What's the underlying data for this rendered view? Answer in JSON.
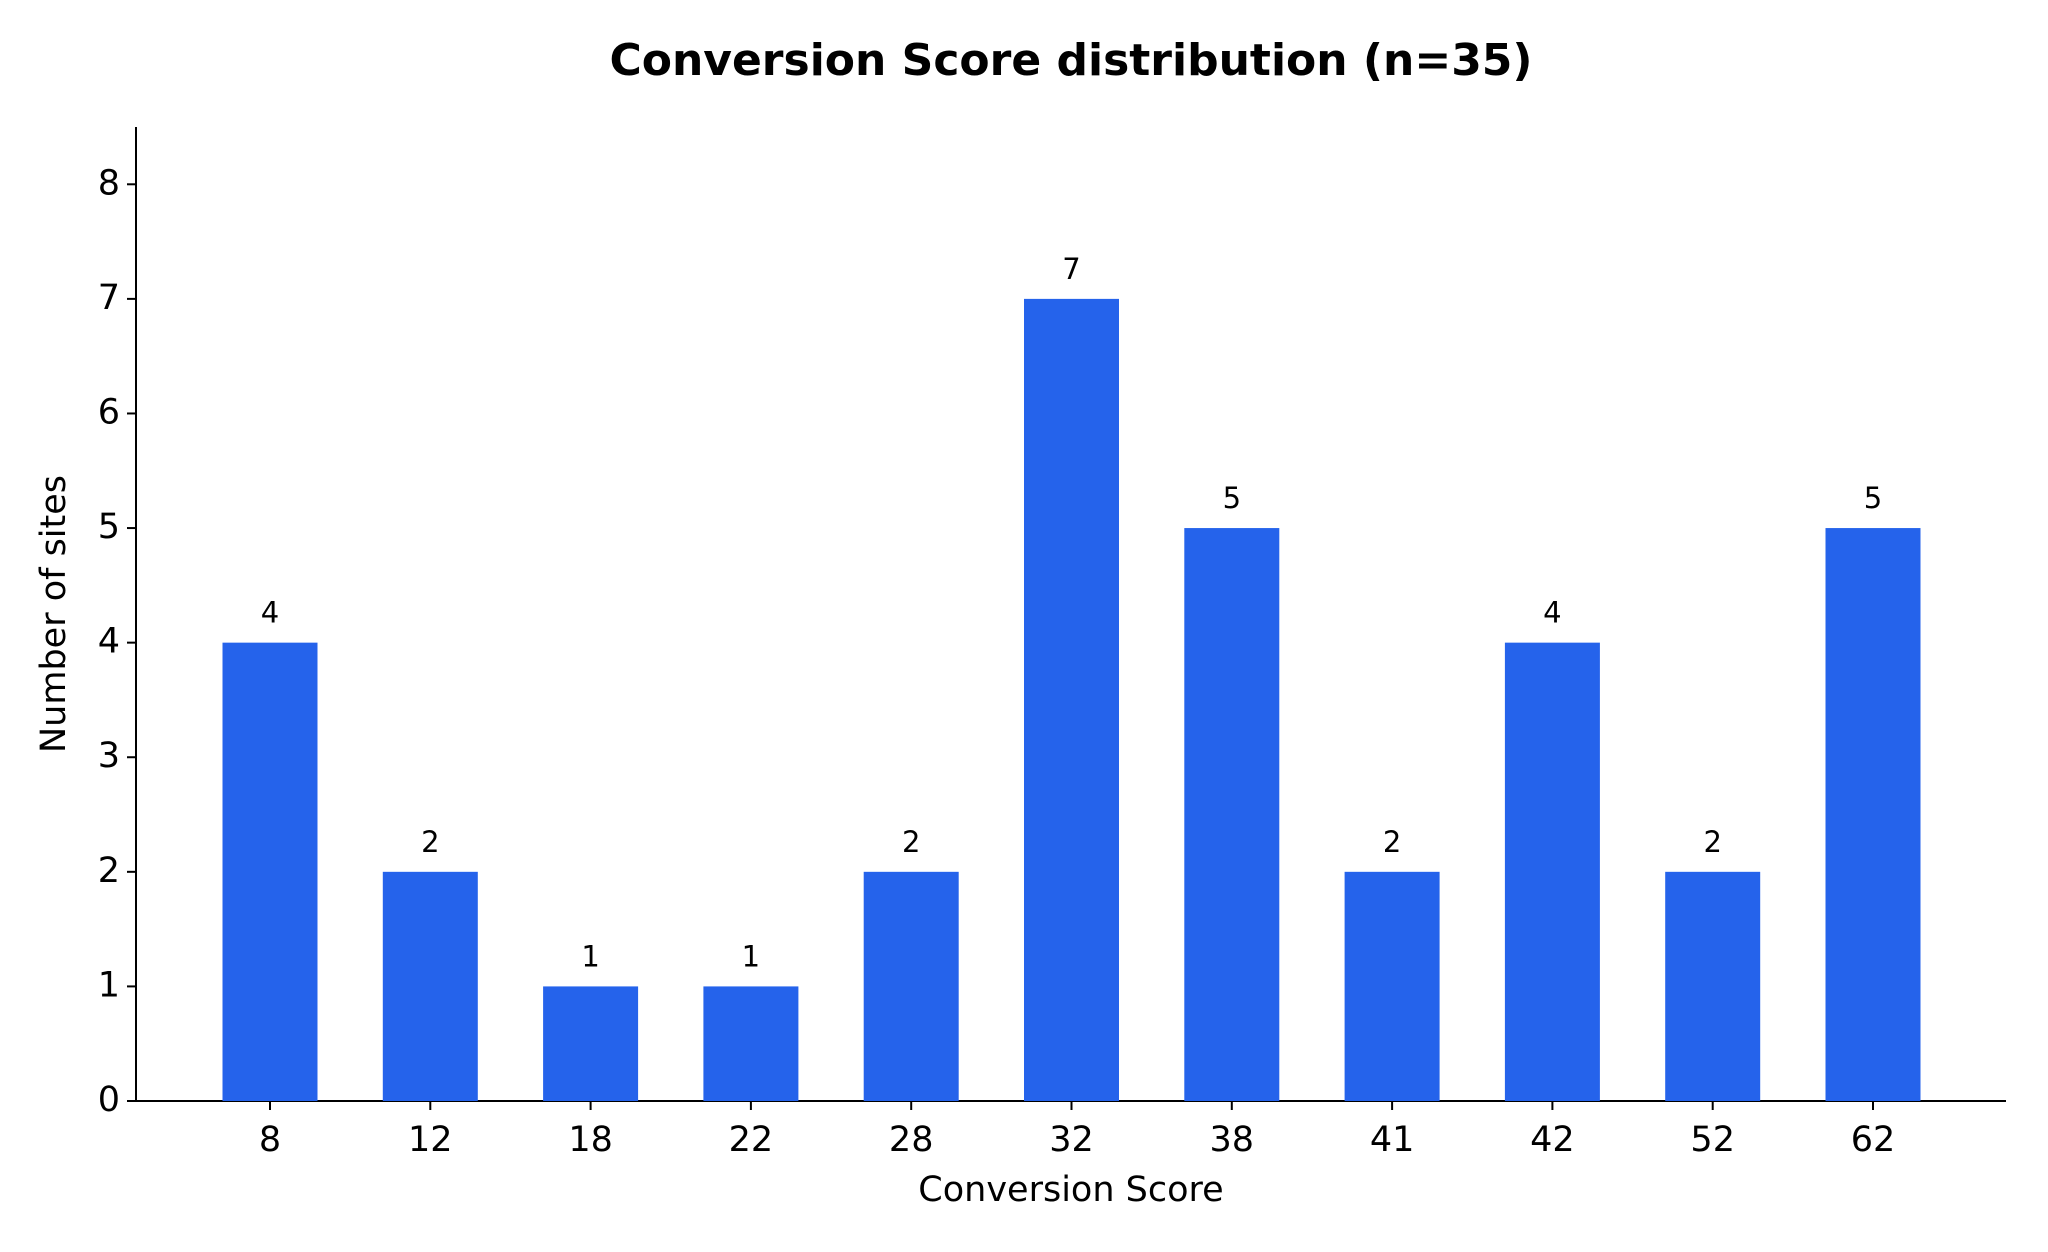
{
  "chart_data": {
    "type": "bar",
    "title": "Conversion Score distribution (n=35)",
    "x_label": "Conversion Score",
    "y_label": "Number of sites",
    "categories": [
      "8",
      "12",
      "18",
      "22",
      "28",
      "32",
      "38",
      "41",
      "42",
      "52",
      "62"
    ],
    "values": [
      4,
      2,
      1,
      1,
      2,
      7,
      5,
      2,
      4,
      2,
      5
    ],
    "color": "#2563eb",
    "ylim": [
      0,
      8.5
    ],
    "yticks": [
      0,
      1,
      2,
      3,
      4,
      5,
      6,
      7,
      8
    ],
    "grid": false
  }
}
